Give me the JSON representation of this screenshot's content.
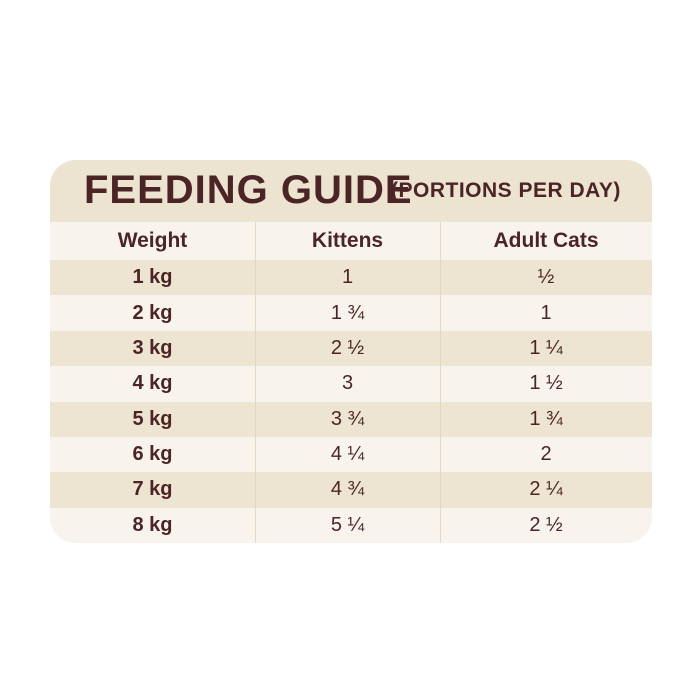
{
  "title": "FEEDING GUIDE",
  "subtitle": "(PORTIONS PER DAY)",
  "table": {
    "header": [
      "Weight",
      "Kittens",
      "Adult Cats"
    ],
    "rows": [
      [
        "1 kg",
        "1",
        "½"
      ],
      [
        "2 kg",
        "1 ¾",
        "1"
      ],
      [
        "3 kg",
        "2 ½",
        "1 ¼"
      ],
      [
        "4 kg",
        "3",
        "1 ½"
      ],
      [
        "5 kg",
        "3 ¾",
        "1 ¾"
      ],
      [
        "6 kg",
        "4 ¼",
        "2"
      ],
      [
        "7 kg",
        "4 ¾",
        "2 ¼"
      ],
      [
        "8 kg",
        "5 ¼",
        "2 ½"
      ]
    ]
  }
}
